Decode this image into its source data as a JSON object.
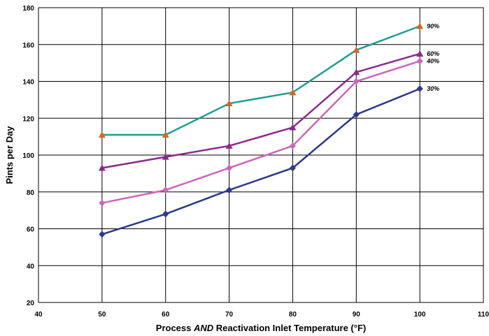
{
  "chart_data": {
    "type": "line",
    "xlabel_prefix": "Process ",
    "xlabel_emph": "AND",
    "xlabel_suffix": " Reactivation Inlet Temperature (°F)",
    "ylabel": "Pints per Day",
    "xlim": [
      40,
      110
    ],
    "ylim": [
      20,
      180
    ],
    "xticks": [
      40,
      50,
      60,
      70,
      80,
      90,
      100,
      110
    ],
    "yticks": [
      20,
      40,
      60,
      80,
      100,
      120,
      140,
      160,
      180
    ],
    "grid": true,
    "x": [
      50,
      60,
      70,
      80,
      90,
      100
    ],
    "series": [
      {
        "name": "90%",
        "values": [
          111,
          111,
          128,
          134,
          157,
          170
        ],
        "color": "#1f9c98",
        "marker": "triangle",
        "marker_color": "#d2691e"
      },
      {
        "name": "60%",
        "values": [
          93,
          99,
          105,
          115,
          145,
          155
        ],
        "color": "#8b2a8b",
        "marker": "triangle",
        "marker_color": "#8b2a8b"
      },
      {
        "name": "40%",
        "values": [
          74,
          81,
          93,
          105,
          140,
          151
        ],
        "color": "#cc66bb",
        "marker": "diamond",
        "marker_color": "#cc66bb"
      },
      {
        "name": "30%",
        "values": [
          57,
          68,
          81,
          93,
          122,
          136
        ],
        "color": "#2b3a8a",
        "marker": "diamond",
        "marker_color": "#2b3a8a"
      }
    ]
  }
}
